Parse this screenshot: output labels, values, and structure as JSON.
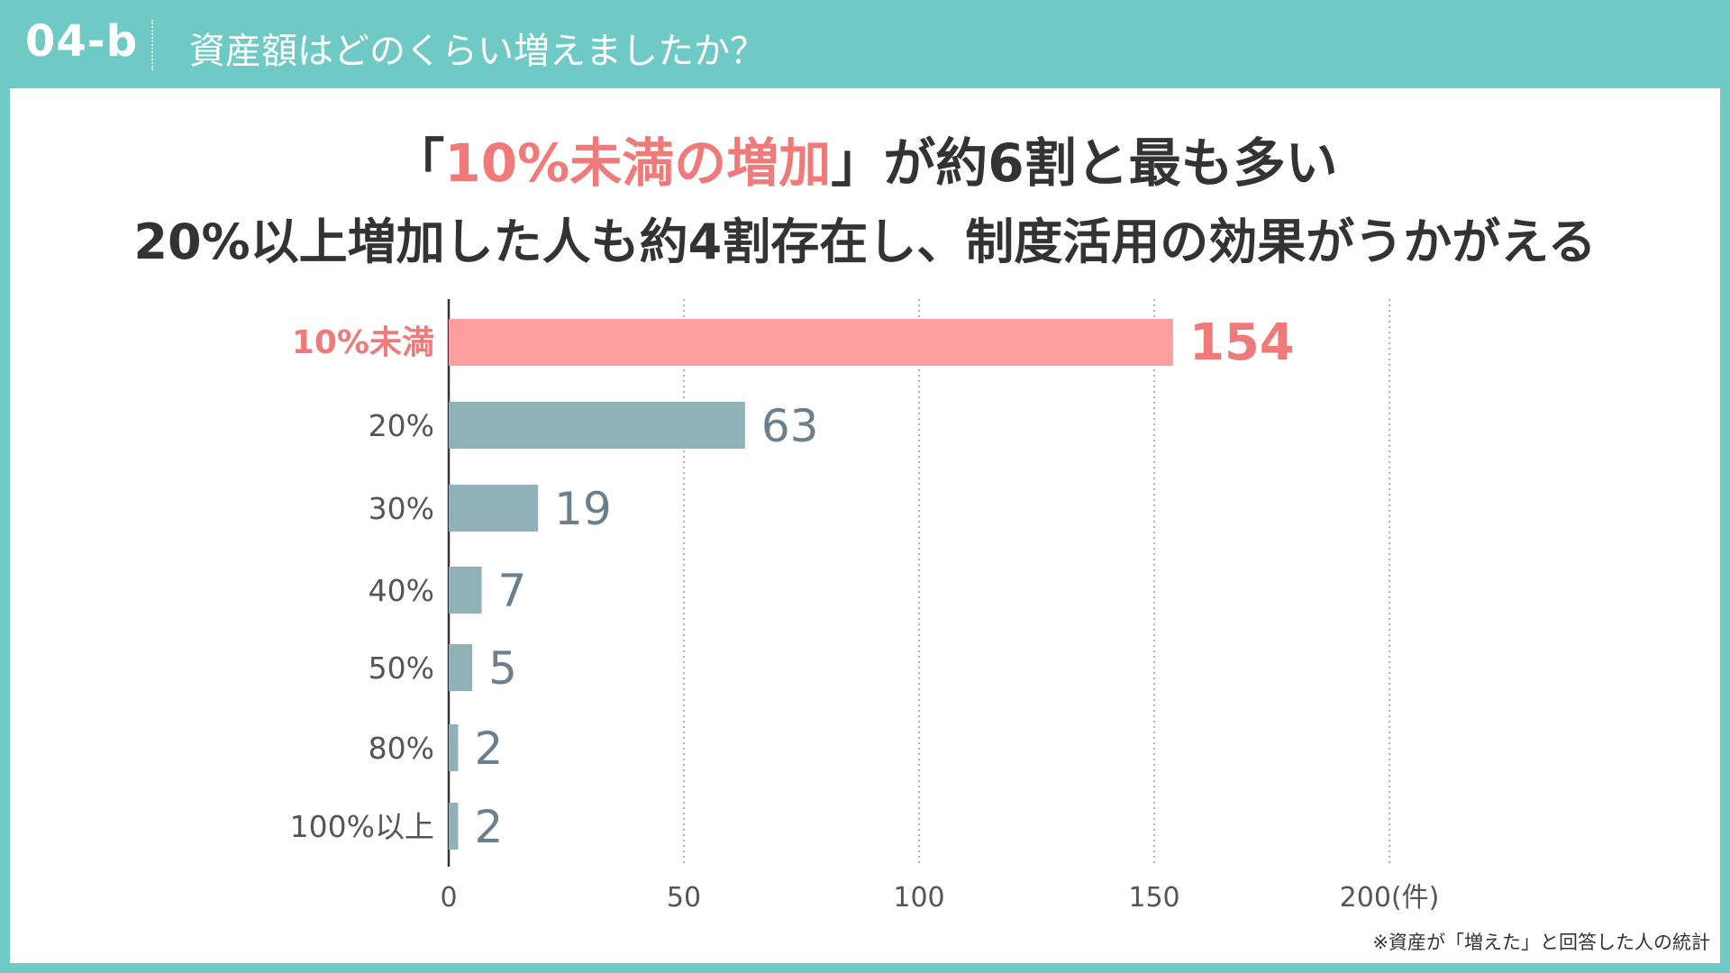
{
  "header": {
    "section_no": "04-b",
    "question": "資産額はどのくらい増えましたか？"
  },
  "headline": {
    "line1_open": "「",
    "line1_highlight": "10%未満の増加",
    "line1_rest": "」が約6割と最も多い",
    "line2": "20%以上増加した人も約4割存在し、制度活用の効果がうかがえる"
  },
  "colors": {
    "accent": "#6fc9c4",
    "highlight_bar": "#ff9d9f",
    "highlight_text": "#f07a7a",
    "bar": "#91b1b8",
    "value_text": "#6b7f8f",
    "label_text": "#555555"
  },
  "chart_data": {
    "type": "bar",
    "orientation": "horizontal",
    "categories": [
      "10%未満",
      "20%",
      "30%",
      "40%",
      "50%",
      "80%",
      "100%以上"
    ],
    "values": [
      154,
      63,
      19,
      7,
      5,
      2,
      2
    ],
    "highlight_index": 0,
    "xlim": [
      0,
      200
    ],
    "xticks": [
      "0",
      "50",
      "100",
      "150",
      "200(件)"
    ],
    "grid": true
  },
  "footnote": "※資産が「増えた」と回答した人の統計"
}
